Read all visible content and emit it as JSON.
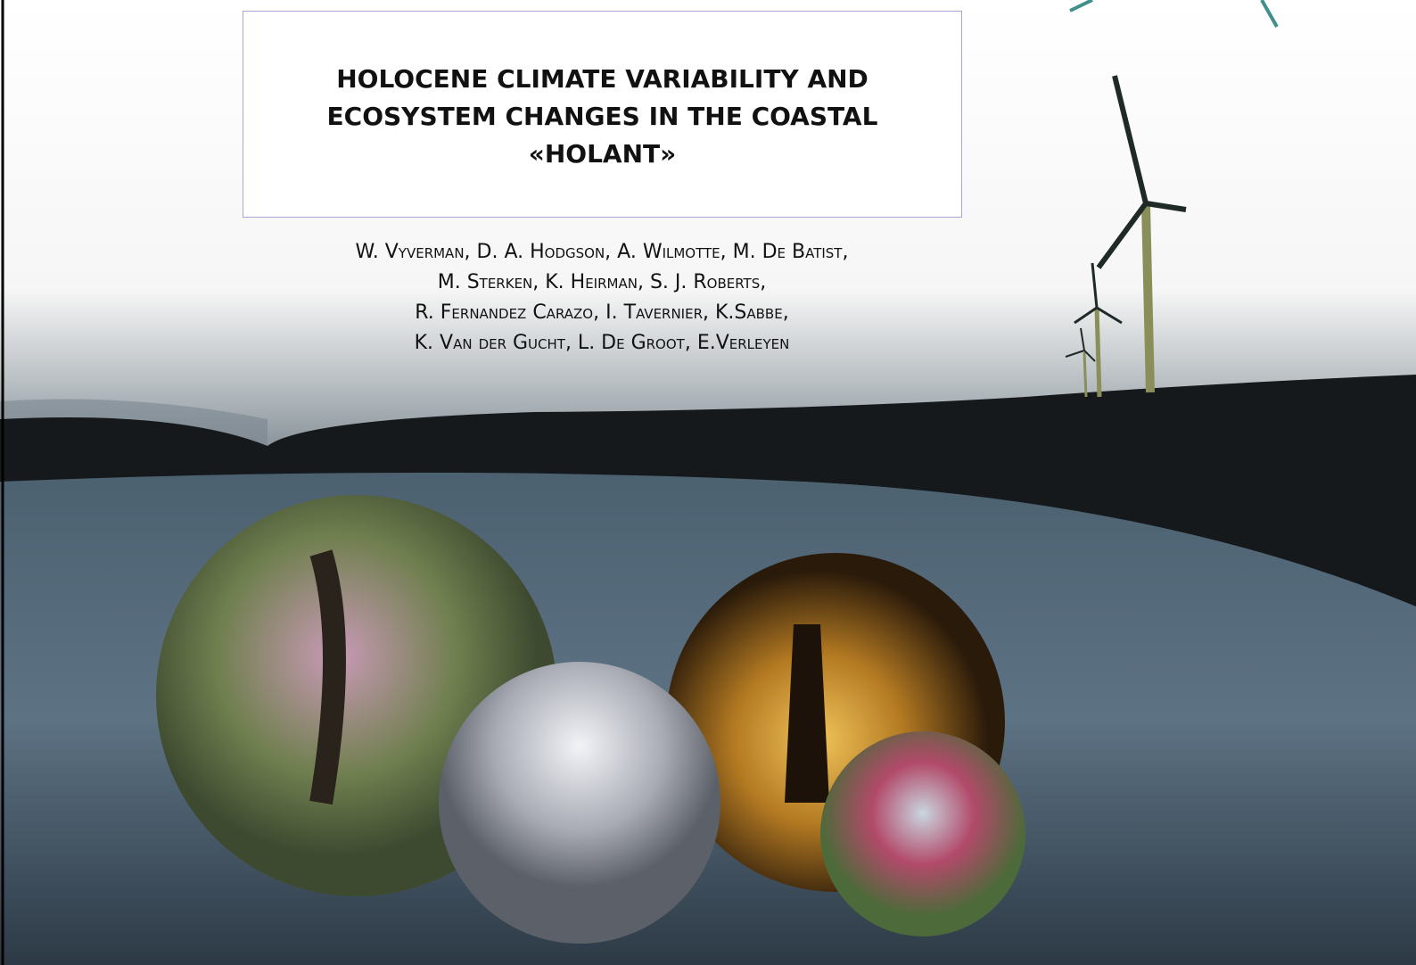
{
  "header": {
    "title_lines": [
      "HOLOCENE CLIMATE VARIABILITY AND",
      "ECOSYSTEM CHANGES IN THE COASTAL",
      "«HOLANT»"
    ]
  },
  "authors": {
    "lines": [
      "W. Vyverman, D. A. Hodgson, A. Wilmotte, M. De Batist,",
      "M. Sterken, K. Heirman, S. J. Roberts,",
      "R. Fernandez Carazo, I. Tavernier, K.Sabbe,",
      "K. Van der Gucht, L. De Groot, E.Verleyen"
    ]
  }
}
